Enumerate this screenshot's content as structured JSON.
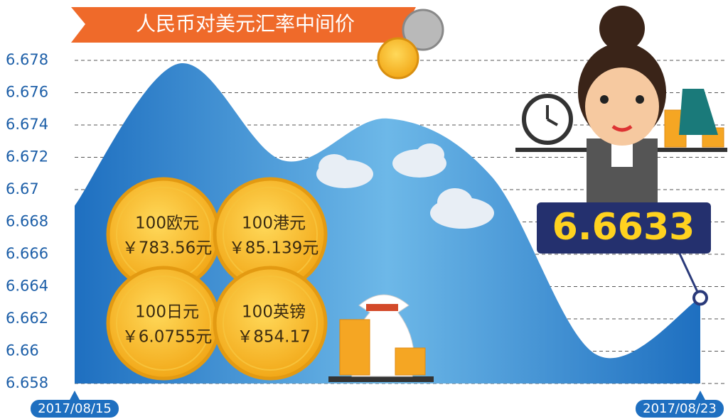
{
  "chart_data": {
    "type": "area",
    "title": "人民币对美元汇率中间价",
    "categories": [
      "2017/08/15",
      null,
      null,
      null,
      null,
      null,
      "2017/08/23"
    ],
    "values": [
      6.669,
      6.6778,
      6.6718,
      6.6744,
      6.6708,
      6.6598,
      6.6633
    ],
    "color": "#2f7fc8",
    "ylim": [
      6.658,
      6.678
    ],
    "yticks": [
      6.658,
      6.66,
      6.662,
      6.664,
      6.666,
      6.668,
      6.67,
      6.672,
      6.674,
      6.676,
      6.678
    ],
    "grid": true,
    "coins": [
      {
        "name": "100欧元",
        "price": "￥783.56元"
      },
      {
        "name": "100港元",
        "price": "￥85.139元"
      },
      {
        "name": "100日元",
        "price": "￥6.0755元"
      },
      {
        "name": "100英镑",
        "price": "￥854.17"
      }
    ]
  }
}
